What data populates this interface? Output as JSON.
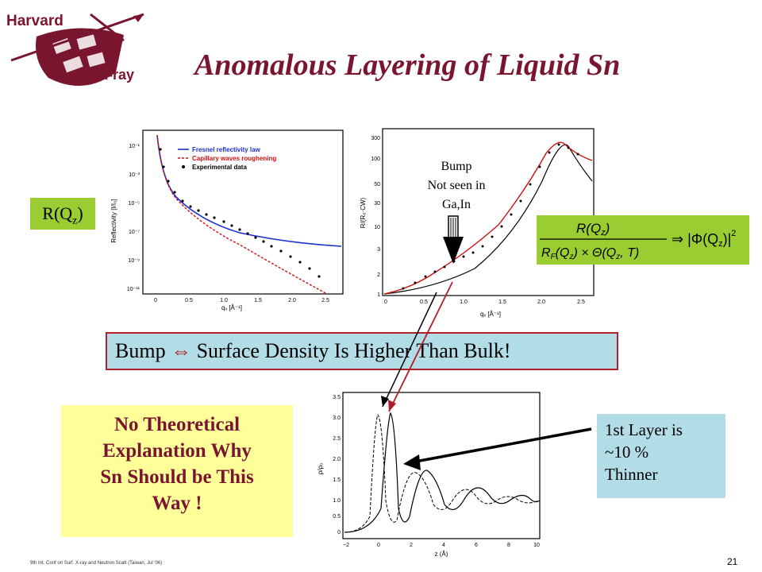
{
  "logo": {
    "line1": "Harvard",
    "line2": "X-ray"
  },
  "title": "Anomalous Layering of Liquid Sn",
  "rq_label": {
    "main": "R(Q",
    "sub": "z",
    "close": ")"
  },
  "left_plot": {
    "ylabel": "Reflectivity  [I/I₀]",
    "xlabel": "qₓ  [Å⁻¹]",
    "yticks": [
      "10⁻¹",
      "10⁻³",
      "10⁻⁵",
      "10⁻⁷",
      "10⁻⁹",
      "10⁻¹¹"
    ],
    "xticks": [
      "0",
      "0.5",
      "1.0",
      "1.5",
      "2.0",
      "2.5"
    ],
    "legend": [
      "Fresnel reflectivity law",
      "Capillary waves roughening",
      "Experimental data"
    ],
    "colors": {
      "fresnel": "#1a2fd0",
      "capillary": "#d01010",
      "data": "#000000"
    }
  },
  "right_plot": {
    "ylabel": "R/(R₀·CW)",
    "xlabel": "qₓ  [Å⁻¹]",
    "yticks": [
      "300",
      "100",
      "50",
      "30",
      "10",
      "3",
      "2",
      "1"
    ],
    "xticks": [
      "0",
      "0.5",
      "1.0",
      "1.5",
      "2.0",
      "2.5"
    ]
  },
  "bump_note": [
    "Bump",
    "Not seen in",
    "Ga,In"
  ],
  "bump_box": {
    "left": "Bump",
    "right": "Surface Density Is Higher Than Bulk!"
  },
  "density_plot": {
    "ylabel": "ρ/ρ₀",
    "xlabel": "z (Å)",
    "yticks": [
      "3.5",
      "3.0",
      "2.5",
      "2.0",
      "1.5",
      "1.0",
      "0.5",
      "0"
    ],
    "xticks": [
      "−2",
      "0",
      "2",
      "4",
      "6",
      "8",
      "10"
    ]
  },
  "theory_box": [
    "No Theoretical",
    "Explanation Why",
    "Sn Should be This",
    "Way !"
  ],
  "layer_box": [
    "1st Layer is",
    "~10  %",
    "Thinner"
  ],
  "footer": "9th Int. Conf on Surf. X-ray and Neutron Scatt (Taiwan, Jul '06)",
  "page_number": "21"
}
